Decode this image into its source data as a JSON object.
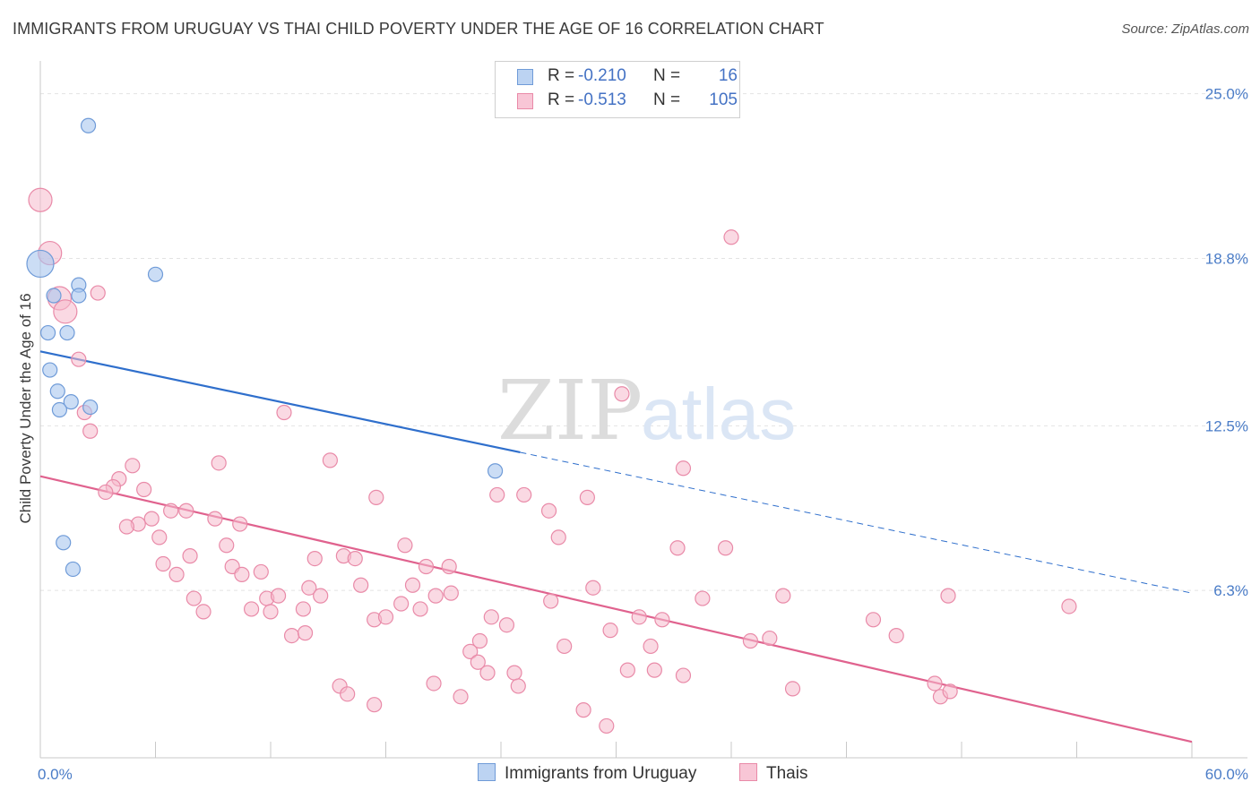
{
  "header": {
    "title": "IMMIGRANTS FROM URUGUAY VS THAI CHILD POVERTY UNDER THE AGE OF 16 CORRELATION CHART",
    "source": "Source: ZipAtlas.com"
  },
  "watermark": {
    "zip": "ZIP",
    "atlas": "atlas"
  },
  "legend": {
    "rows": [
      {
        "r_label": "R =",
        "r_value": "-0.210",
        "n_label": "N =",
        "n_value": "16"
      },
      {
        "r_label": "R =",
        "r_value": "-0.513",
        "n_label": "N =",
        "n_value": "105"
      }
    ]
  },
  "bottom_legend": {
    "uruguay": "Immigrants from Uruguay",
    "thai": "Thais"
  },
  "chart_data": {
    "type": "scatter",
    "title": "IMMIGRANTS FROM URUGUAY VS THAI CHILD POVERTY UNDER THE AGE OF 16 CORRELATION CHART",
    "xlabel": "",
    "ylabel": "Child Poverty Under the Age of 16",
    "xlim": [
      0,
      60
    ],
    "ylim": [
      0,
      26
    ],
    "x_tick_labels": [
      "0.0%",
      "60.0%"
    ],
    "y_ticks": [
      6.3,
      12.5,
      18.8,
      25.0
    ],
    "y_tick_labels": [
      "6.3%",
      "12.5%",
      "18.8%",
      "25.0%"
    ],
    "grid": true,
    "legend_placement": "top-center",
    "colors": {
      "uruguay_fill": "#a9c6ee",
      "uruguay_stroke": "#6f9bd8",
      "uruguay_line": "#2f6fcc",
      "thai_fill": "#f6b9cc",
      "thai_stroke": "#e98aa8",
      "thai_line": "#e0628e",
      "tick_text": "#4a7cc7"
    },
    "series": [
      {
        "name": "Immigrants from Uruguay",
        "r": -0.21,
        "n": 16,
        "trend": {
          "x0": 0,
          "y0": 15.3,
          "x1": 25,
          "y1": 11.5,
          "x_dash_end": 60,
          "y_dash_end": 6.2
        },
        "points": [
          {
            "x": 2.5,
            "y": 23.8,
            "s": 1
          },
          {
            "x": 0,
            "y": 18.6,
            "s": 2
          },
          {
            "x": 6.0,
            "y": 18.2,
            "s": 1
          },
          {
            "x": 2.0,
            "y": 17.8,
            "s": 1
          },
          {
            "x": 0.7,
            "y": 17.4,
            "s": 1
          },
          {
            "x": 2.0,
            "y": 17.4,
            "s": 1
          },
          {
            "x": 0.4,
            "y": 16.0,
            "s": 1
          },
          {
            "x": 1.4,
            "y": 16.0,
            "s": 1
          },
          {
            "x": 0.5,
            "y": 14.6,
            "s": 1
          },
          {
            "x": 0.9,
            "y": 13.8,
            "s": 1
          },
          {
            "x": 1.6,
            "y": 13.4,
            "s": 1
          },
          {
            "x": 1.0,
            "y": 13.1,
            "s": 1
          },
          {
            "x": 2.6,
            "y": 13.2,
            "s": 1
          },
          {
            "x": 23.7,
            "y": 10.8,
            "s": 1
          },
          {
            "x": 1.2,
            "y": 8.1,
            "s": 1
          },
          {
            "x": 1.7,
            "y": 7.1,
            "s": 1
          }
        ]
      },
      {
        "name": "Thais",
        "r": -0.513,
        "n": 105,
        "trend": {
          "x0": 0,
          "y0": 10.6,
          "x1": 60,
          "y1": 0.6
        },
        "points": [
          {
            "x": 0,
            "y": 21.0,
            "s": 2
          },
          {
            "x": 0.5,
            "y": 19.0,
            "s": 2
          },
          {
            "x": 1.0,
            "y": 17.3,
            "s": 2
          },
          {
            "x": 1.3,
            "y": 16.8,
            "s": 2
          },
          {
            "x": 3.0,
            "y": 17.5,
            "s": 1
          },
          {
            "x": 2.0,
            "y": 15.0,
            "s": 1
          },
          {
            "x": 2.3,
            "y": 13.0,
            "s": 1
          },
          {
            "x": 2.6,
            "y": 12.3,
            "s": 1
          },
          {
            "x": 4.8,
            "y": 11.0,
            "s": 1
          },
          {
            "x": 4.1,
            "y": 10.5,
            "s": 1
          },
          {
            "x": 3.8,
            "y": 10.2,
            "s": 1
          },
          {
            "x": 3.4,
            "y": 10.0,
            "s": 1
          },
          {
            "x": 5.4,
            "y": 10.1,
            "s": 1
          },
          {
            "x": 6.8,
            "y": 9.3,
            "s": 1
          },
          {
            "x": 7.6,
            "y": 9.3,
            "s": 1
          },
          {
            "x": 5.8,
            "y": 9.0,
            "s": 1
          },
          {
            "x": 5.1,
            "y": 8.8,
            "s": 1
          },
          {
            "x": 4.5,
            "y": 8.7,
            "s": 1
          },
          {
            "x": 6.2,
            "y": 8.3,
            "s": 1
          },
          {
            "x": 9.1,
            "y": 9.0,
            "s": 1
          },
          {
            "x": 10.4,
            "y": 8.8,
            "s": 1
          },
          {
            "x": 9.3,
            "y": 11.1,
            "s": 1
          },
          {
            "x": 12.7,
            "y": 13.0,
            "s": 1
          },
          {
            "x": 15.1,
            "y": 11.2,
            "s": 1
          },
          {
            "x": 17.5,
            "y": 9.8,
            "s": 1
          },
          {
            "x": 23.8,
            "y": 9.9,
            "s": 1
          },
          {
            "x": 25.2,
            "y": 9.9,
            "s": 1
          },
          {
            "x": 26.5,
            "y": 9.3,
            "s": 1
          },
          {
            "x": 28.5,
            "y": 9.8,
            "s": 1
          },
          {
            "x": 30.3,
            "y": 13.7,
            "s": 1
          },
          {
            "x": 33.5,
            "y": 10.9,
            "s": 1
          },
          {
            "x": 36.0,
            "y": 19.6,
            "s": 1
          },
          {
            "x": 7.8,
            "y": 7.6,
            "s": 1
          },
          {
            "x": 9.7,
            "y": 8.0,
            "s": 1
          },
          {
            "x": 6.4,
            "y": 7.3,
            "s": 1
          },
          {
            "x": 7.1,
            "y": 6.9,
            "s": 1
          },
          {
            "x": 10.0,
            "y": 7.2,
            "s": 1
          },
          {
            "x": 10.5,
            "y": 6.9,
            "s": 1
          },
          {
            "x": 11.5,
            "y": 7.0,
            "s": 1
          },
          {
            "x": 14.3,
            "y": 7.5,
            "s": 1
          },
          {
            "x": 15.8,
            "y": 7.6,
            "s": 1
          },
          {
            "x": 16.4,
            "y": 7.5,
            "s": 1
          },
          {
            "x": 19.0,
            "y": 8.0,
            "s": 1
          },
          {
            "x": 20.1,
            "y": 7.2,
            "s": 1
          },
          {
            "x": 21.3,
            "y": 7.2,
            "s": 1
          },
          {
            "x": 27.0,
            "y": 8.3,
            "s": 1
          },
          {
            "x": 33.2,
            "y": 7.9,
            "s": 1
          },
          {
            "x": 35.7,
            "y": 7.9,
            "s": 1
          },
          {
            "x": 8.0,
            "y": 6.0,
            "s": 1
          },
          {
            "x": 8.5,
            "y": 5.5,
            "s": 1
          },
          {
            "x": 11.0,
            "y": 5.6,
            "s": 1
          },
          {
            "x": 11.8,
            "y": 6.0,
            "s": 1
          },
          {
            "x": 12.4,
            "y": 6.1,
            "s": 1
          },
          {
            "x": 12.0,
            "y": 5.5,
            "s": 1
          },
          {
            "x": 13.7,
            "y": 5.6,
            "s": 1
          },
          {
            "x": 14.0,
            "y": 6.4,
            "s": 1
          },
          {
            "x": 14.6,
            "y": 6.1,
            "s": 1
          },
          {
            "x": 16.7,
            "y": 6.5,
            "s": 1
          },
          {
            "x": 17.4,
            "y": 5.2,
            "s": 1
          },
          {
            "x": 18.0,
            "y": 5.3,
            "s": 1
          },
          {
            "x": 18.8,
            "y": 5.8,
            "s": 1
          },
          {
            "x": 19.4,
            "y": 6.5,
            "s": 1
          },
          {
            "x": 19.8,
            "y": 5.6,
            "s": 1
          },
          {
            "x": 20.6,
            "y": 6.1,
            "s": 1
          },
          {
            "x": 21.4,
            "y": 6.2,
            "s": 1
          },
          {
            "x": 13.1,
            "y": 4.6,
            "s": 1
          },
          {
            "x": 13.8,
            "y": 4.7,
            "s": 1
          },
          {
            "x": 23.5,
            "y": 5.3,
            "s": 1
          },
          {
            "x": 24.3,
            "y": 5.0,
            "s": 1
          },
          {
            "x": 26.6,
            "y": 5.9,
            "s": 1
          },
          {
            "x": 28.8,
            "y": 6.4,
            "s": 1
          },
          {
            "x": 31.2,
            "y": 5.3,
            "s": 1
          },
          {
            "x": 32.4,
            "y": 5.2,
            "s": 1
          },
          {
            "x": 34.5,
            "y": 6.0,
            "s": 1
          },
          {
            "x": 37.0,
            "y": 4.4,
            "s": 1
          },
          {
            "x": 38.0,
            "y": 4.5,
            "s": 1
          },
          {
            "x": 38.7,
            "y": 6.1,
            "s": 1
          },
          {
            "x": 43.4,
            "y": 5.2,
            "s": 1
          },
          {
            "x": 44.6,
            "y": 4.6,
            "s": 1
          },
          {
            "x": 47.3,
            "y": 6.1,
            "s": 1
          },
          {
            "x": 53.6,
            "y": 5.7,
            "s": 1
          },
          {
            "x": 22.4,
            "y": 4.0,
            "s": 1
          },
          {
            "x": 22.8,
            "y": 3.6,
            "s": 1
          },
          {
            "x": 22.9,
            "y": 4.4,
            "s": 1
          },
          {
            "x": 23.3,
            "y": 3.2,
            "s": 1
          },
          {
            "x": 24.7,
            "y": 3.2,
            "s": 1
          },
          {
            "x": 27.3,
            "y": 4.2,
            "s": 1
          },
          {
            "x": 29.7,
            "y": 4.8,
            "s": 1
          },
          {
            "x": 30.6,
            "y": 3.3,
            "s": 1
          },
          {
            "x": 31.8,
            "y": 4.2,
            "s": 1
          },
          {
            "x": 32.0,
            "y": 3.3,
            "s": 1
          },
          {
            "x": 33.5,
            "y": 3.1,
            "s": 1
          },
          {
            "x": 15.6,
            "y": 2.7,
            "s": 1
          },
          {
            "x": 16.0,
            "y": 2.4,
            "s": 1
          },
          {
            "x": 17.4,
            "y": 2.0,
            "s": 1
          },
          {
            "x": 20.5,
            "y": 2.8,
            "s": 1
          },
          {
            "x": 21.9,
            "y": 2.3,
            "s": 1
          },
          {
            "x": 24.9,
            "y": 2.7,
            "s": 1
          },
          {
            "x": 28.3,
            "y": 1.8,
            "s": 1
          },
          {
            "x": 29.5,
            "y": 1.2,
            "s": 1
          },
          {
            "x": 39.2,
            "y": 2.6,
            "s": 1
          },
          {
            "x": 46.6,
            "y": 2.8,
            "s": 1
          },
          {
            "x": 46.9,
            "y": 2.3,
            "s": 1
          },
          {
            "x": 47.4,
            "y": 2.5,
            "s": 1
          }
        ]
      }
    ]
  }
}
